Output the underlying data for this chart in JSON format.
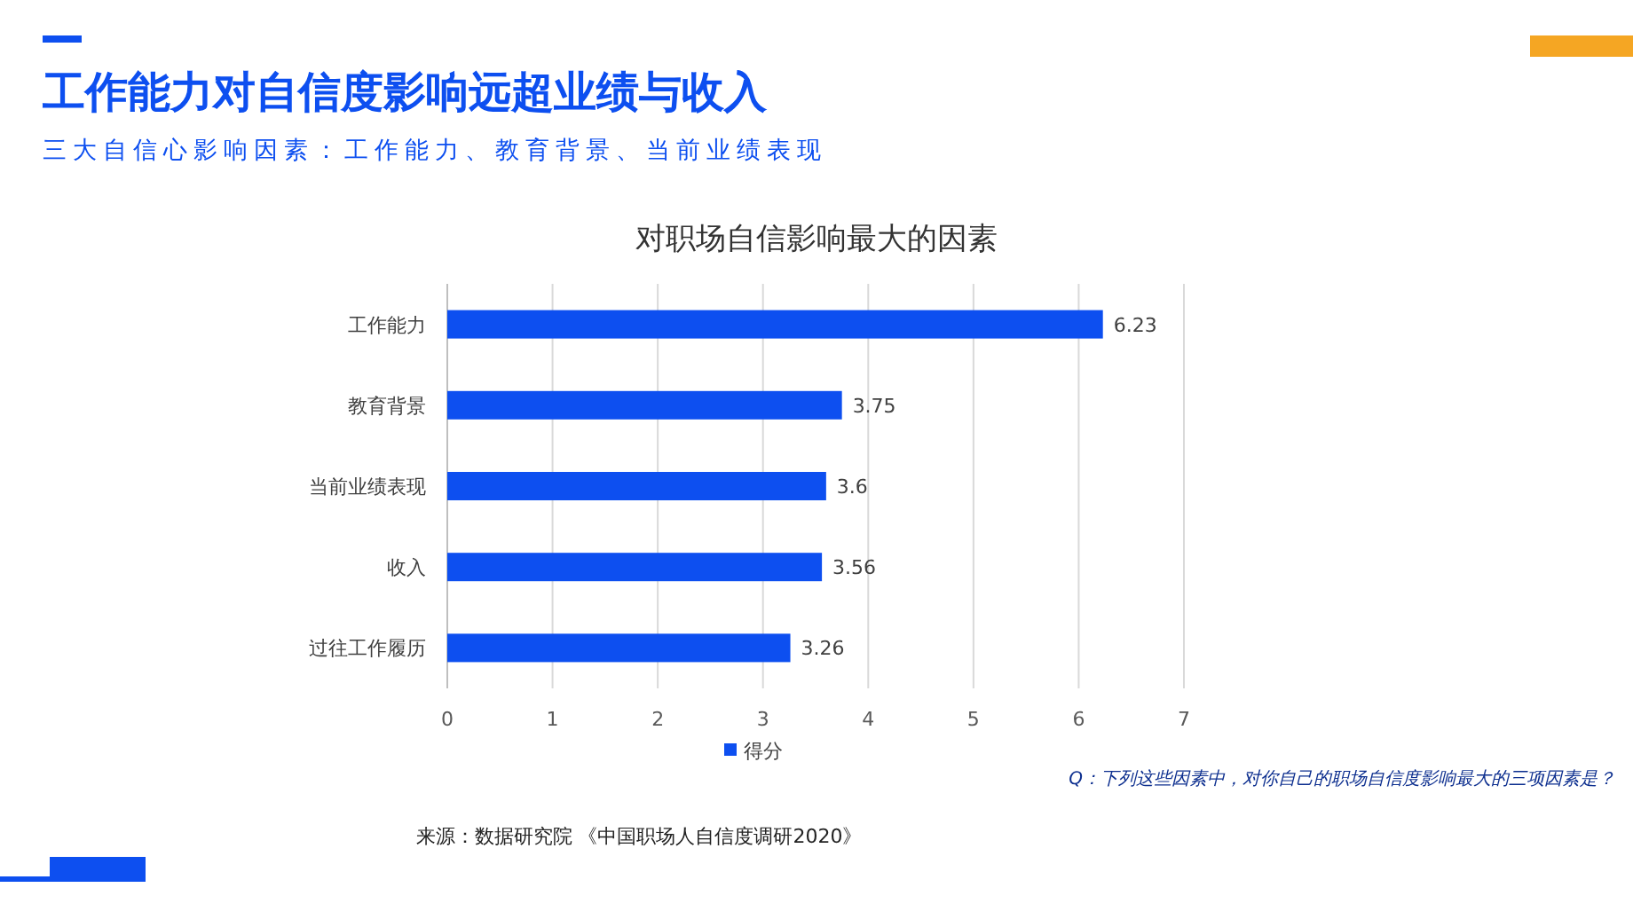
{
  "chart_data": {
    "type": "bar",
    "orientation": "horizontal",
    "title": "工作能力对自信度影响远超业绩与收入",
    "subtitle": "三大自信心影响因素：工作能力、教育背景、当前业绩表现",
    "categories": [
      "工作能力",
      "教育背景",
      "当前业绩表现",
      "收入",
      "过往工作履历"
    ],
    "series": [
      {
        "name": "得分",
        "color": "#0d4ff0",
        "values": [
          6.23,
          3.75,
          3.6,
          3.56,
          3.26
        ]
      }
    ],
    "xlim": [
      0,
      7
    ],
    "xticks": [
      0,
      1,
      2,
      3,
      4,
      5,
      6,
      7
    ],
    "grid": "x",
    "legend": "bottom",
    "data_labels": true,
    "annotations": [
      "对职场自信影响最大的因素",
      "Q：下列这些因素中，对你自己的职场自信度影响最大的三项因素是？",
      "来源：数据研究院 《中国职场人自信度调研2020》"
    ]
  }
}
